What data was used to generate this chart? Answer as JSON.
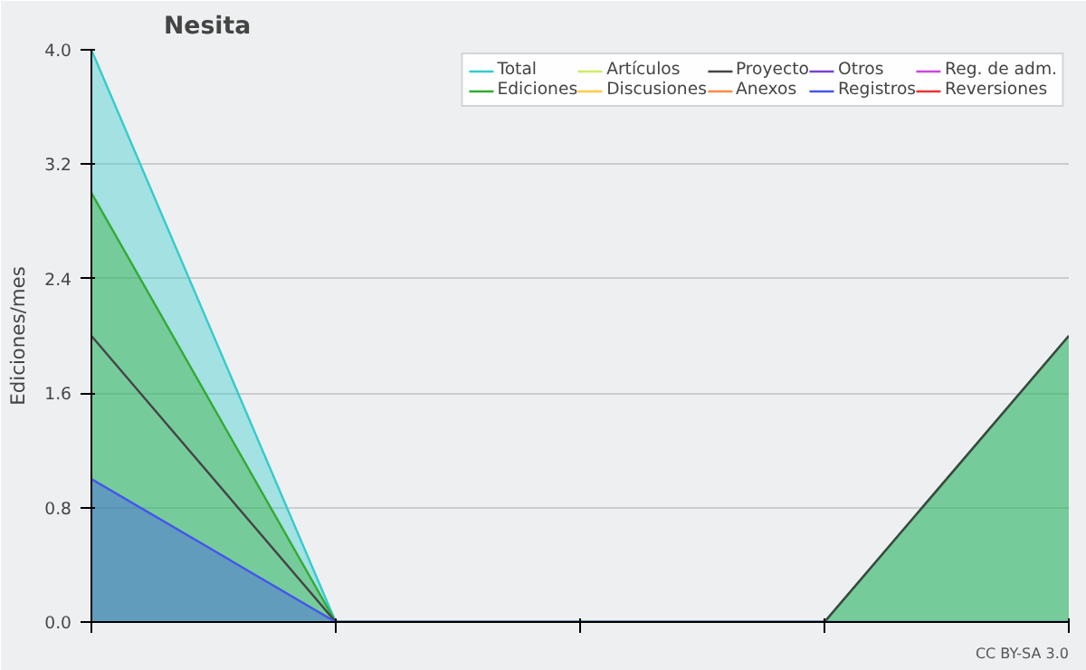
{
  "chart_data": {
    "type": "line",
    "title": "Nesita",
    "ylabel": "Ediciones/mes",
    "categories": [
      null,
      null,
      null,
      null,
      null
    ],
    "ylim": [
      0,
      4
    ],
    "yticks": [
      {
        "value": 0,
        "label": "0.0"
      },
      {
        "value": 0.8,
        "label": "0.8"
      },
      {
        "value": 1.6,
        "label": "1.6"
      },
      {
        "value": 2.4,
        "label": "2.4"
      },
      {
        "value": 3.2,
        "label": "3.2"
      },
      {
        "value": 4,
        "label": "4.0"
      }
    ],
    "grid": "y",
    "legend": "top right",
    "annotations": [
      "CC BY-SA 3.0"
    ],
    "series": [
      {
        "name": "Total",
        "color": "#33cccc",
        "type": "area",
        "values": [
          4,
          0,
          0,
          0,
          2
        ]
      },
      {
        "name": "Ediciones",
        "color": "#33aa33",
        "type": "area",
        "values": [
          3,
          0,
          0,
          0,
          2
        ]
      },
      {
        "name": "Artículos",
        "color": "#ccee66",
        "values": [
          null,
          null,
          null,
          null,
          null
        ]
      },
      {
        "name": "Discusiones",
        "color": "#ffcc44",
        "values": [
          null,
          null,
          null,
          null,
          null
        ]
      },
      {
        "name": "Proyecto",
        "color": "#444444",
        "values": [
          2,
          0,
          0,
          0,
          2
        ]
      },
      {
        "name": "Anexos",
        "color": "#ff8844",
        "values": [
          null,
          null,
          null,
          null,
          null
        ]
      },
      {
        "name": "Otros",
        "color": "#7744cc",
        "values": [
          null,
          null,
          null,
          null,
          null
        ]
      },
      {
        "name": "Registros",
        "color": "#4455ee",
        "type": "area",
        "values": [
          1,
          0,
          0,
          0,
          0
        ]
      },
      {
        "name": "Reg. de adm.",
        "color": "#cc44dd",
        "values": [
          null,
          null,
          null,
          null,
          null
        ]
      },
      {
        "name": "Reversiones",
        "color": "#ee3333",
        "values": [
          null,
          null,
          null,
          null,
          null
        ]
      }
    ]
  }
}
